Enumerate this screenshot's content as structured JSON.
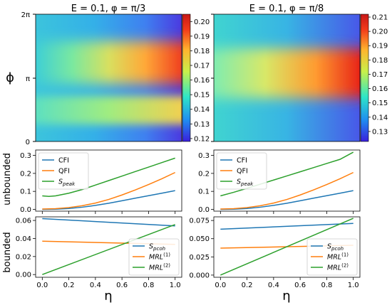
{
  "chart_data": [
    {
      "type": "heatmap",
      "panel": "heat-left",
      "title": "E = 0.1, φ = π/3",
      "ylabel": "ϕ",
      "yticks": [
        "0",
        "π",
        "2π"
      ],
      "colorbar_ticks": [
        "0.12",
        "0.13",
        "0.14",
        "0.15",
        "0.16",
        "0.17",
        "0.18",
        "0.19",
        "0.20"
      ],
      "colorbar_range": [
        0.118,
        0.205
      ],
      "colormap": [
        "#3a1fdc",
        "#1f8ef0",
        "#2ee5c8",
        "#c8f04a",
        "#ffb42e",
        "#f23a1a",
        "#c81818"
      ]
    },
    {
      "type": "heatmap",
      "panel": "heat-right",
      "title": "E = 0.1, φ = π/8",
      "colorbar_ticks": [
        "0.13",
        "0.14",
        "0.15",
        "0.16",
        "0.17",
        "0.18",
        "0.19",
        "0.20",
        "0.21"
      ],
      "colorbar_range": [
        0.123,
        0.212
      ],
      "colormap": [
        "#3a1fdc",
        "#1f8ef0",
        "#2ee5c8",
        "#c8f04a",
        "#ffb42e",
        "#f23a1a",
        "#c81818"
      ]
    },
    {
      "type": "line",
      "panel": "unbounded-left",
      "ylabel": "unbounded",
      "xlim": [
        0,
        1
      ],
      "ylim": [
        -0.01,
        0.33
      ],
      "yticks": [
        0.0,
        0.1,
        0.2,
        0.3
      ],
      "yticklabels": [
        "0.0",
        "0.1",
        "0.2",
        "0.3"
      ],
      "legend": "top-left",
      "series": [
        {
          "name": "CFI",
          "color": "#1f77b4",
          "x": [
            0,
            0.1,
            0.2,
            0.3,
            0.4,
            0.5,
            0.6,
            0.7,
            0.8,
            0.9,
            1.0
          ],
          "y": [
            0.0,
            0.001,
            0.005,
            0.012,
            0.022,
            0.034,
            0.048,
            0.062,
            0.076,
            0.09,
            0.104
          ]
        },
        {
          "name": "QFI",
          "color": "#ff7f0e",
          "x": [
            0,
            0.1,
            0.2,
            0.3,
            0.4,
            0.5,
            0.6,
            0.7,
            0.8,
            0.9,
            1.0
          ],
          "y": [
            0.002,
            0.004,
            0.01,
            0.02,
            0.035,
            0.055,
            0.08,
            0.108,
            0.138,
            0.17,
            0.205
          ]
        },
        {
          "name": "S_peak",
          "color": "#2ca02c",
          "x": [
            0,
            0.05,
            0.1,
            0.2,
            0.3,
            0.4,
            0.5,
            0.6,
            0.7,
            0.8,
            0.9,
            1.0
          ],
          "y": [
            0.075,
            0.072,
            0.075,
            0.09,
            0.11,
            0.135,
            0.16,
            0.185,
            0.21,
            0.235,
            0.26,
            0.285
          ]
        }
      ]
    },
    {
      "type": "line",
      "panel": "unbounded-right",
      "xlim": [
        0,
        1
      ],
      "ylim": [
        -0.01,
        0.33
      ],
      "yticks": [
        0.0,
        0.1,
        0.2,
        0.3
      ],
      "yticklabels": [
        "0.0",
        "0.1",
        "0.2",
        "0.3"
      ],
      "legend": "top-left",
      "series": [
        {
          "name": "CFI",
          "color": "#1f77b4",
          "x": [
            0,
            0.1,
            0.2,
            0.3,
            0.4,
            0.5,
            0.6,
            0.7,
            0.8,
            0.9,
            1.0
          ],
          "y": [
            0.0,
            0.001,
            0.005,
            0.012,
            0.022,
            0.034,
            0.048,
            0.062,
            0.076,
            0.09,
            0.104
          ]
        },
        {
          "name": "QFI",
          "color": "#ff7f0e",
          "x": [
            0,
            0.1,
            0.2,
            0.3,
            0.4,
            0.5,
            0.6,
            0.7,
            0.8,
            0.9,
            1.0
          ],
          "y": [
            0.002,
            0.004,
            0.01,
            0.02,
            0.035,
            0.055,
            0.08,
            0.108,
            0.138,
            0.17,
            0.205
          ]
        },
        {
          "name": "S_peak",
          "color": "#2ca02c",
          "x": [
            0,
            0.1,
            0.2,
            0.3,
            0.4,
            0.5,
            0.6,
            0.7,
            0.8,
            0.9,
            1.0
          ],
          "y": [
            0.075,
            0.095,
            0.117,
            0.14,
            0.163,
            0.186,
            0.209,
            0.232,
            0.255,
            0.278,
            0.318
          ]
        }
      ]
    },
    {
      "type": "line",
      "panel": "bounded-left",
      "ylabel": "bounded",
      "xlabel": "η",
      "xlim": [
        -0.05,
        1.05
      ],
      "ylim": [
        -0.003,
        0.064
      ],
      "xticks": [
        0.0,
        0.2,
        0.4,
        0.6,
        0.8,
        1.0
      ],
      "xticklabels": [
        "0.0",
        "0.2",
        "0.4",
        "0.6",
        "0.8",
        "1.0"
      ],
      "yticks": [
        0.0,
        0.02,
        0.04,
        0.06
      ],
      "yticklabels": [
        "0.00",
        "0.02",
        "0.04",
        "0.06"
      ],
      "legend": "bottom-right",
      "series": [
        {
          "name": "S_pcoh",
          "color": "#1f77b4",
          "x": [
            0,
            1.0
          ],
          "y": [
            0.062,
            0.054
          ]
        },
        {
          "name": "MRL(1)",
          "color": "#ff7f0e",
          "x": [
            0,
            1.0
          ],
          "y": [
            0.037,
            0.0335
          ]
        },
        {
          "name": "MRL(2)",
          "color": "#2ca02c",
          "x": [
            0,
            1.0
          ],
          "y": [
            0.0,
            0.0555
          ]
        }
      ]
    },
    {
      "type": "line",
      "panel": "bounded-right",
      "xlabel": "η",
      "xlim": [
        -0.05,
        1.05
      ],
      "ylim": [
        -0.003,
        0.08
      ],
      "xticks": [
        0.0,
        0.2,
        0.4,
        0.6,
        0.8,
        1.0
      ],
      "xticklabels": [
        "0.0",
        "0.2",
        "0.4",
        "0.6",
        "0.8",
        "1.0"
      ],
      "yticks": [
        0.0,
        0.025,
        0.05,
        0.075
      ],
      "yticklabels": [
        "0.000",
        "0.025",
        "0.050",
        "0.075"
      ],
      "legend": "bottom-right",
      "series": [
        {
          "name": "S_pcoh",
          "color": "#1f77b4",
          "x": [
            0,
            1.0
          ],
          "y": [
            0.063,
            0.071
          ]
        },
        {
          "name": "MRL(1)",
          "color": "#ff7f0e",
          "x": [
            0,
            1.0
          ],
          "y": [
            0.037,
            0.041
          ]
        },
        {
          "name": "MRL(2)",
          "color": "#2ca02c",
          "x": [
            0,
            1.0
          ],
          "y": [
            0.0,
            0.078
          ]
        }
      ]
    }
  ]
}
